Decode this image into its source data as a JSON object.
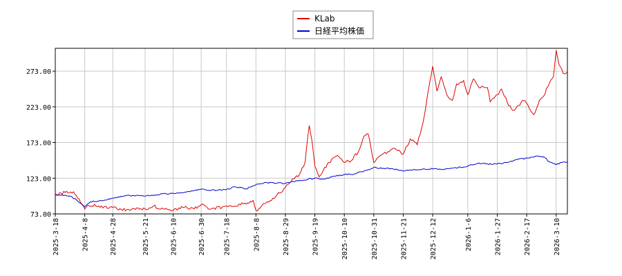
{
  "chart_data": {
    "type": "line",
    "title": "",
    "xlabel": "",
    "ylabel": "",
    "ylim": [
      73.0,
      305.0
    ],
    "y_ticks": [
      73.0,
      123.0,
      173.0,
      223.0,
      273.0
    ],
    "y_tick_labels": [
      "73.00",
      "123.00",
      "173.00",
      "223.00",
      "273.00"
    ],
    "x_range": [
      "2025-03-18",
      "2026-03-18"
    ],
    "x_ticks": [
      "2025-3-18",
      "2025-4-8",
      "2025-4-28",
      "2025-5-21",
      "2025-6-10",
      "2025-6-30",
      "2025-7-18",
      "2025-8-8",
      "2025-8-29",
      "2025-9-19",
      "2025-10-10",
      "2025-10-31",
      "2025-11-21",
      "2025-12-12",
      "2026-1-6",
      "2026-1-27",
      "2026-2-17",
      "2026-3-10"
    ],
    "x_tick_dates": [
      "2025-03-18",
      "2025-04-08",
      "2025-04-28",
      "2025-05-21",
      "2025-06-10",
      "2025-06-30",
      "2025-07-18",
      "2025-08-08",
      "2025-08-29",
      "2025-09-19",
      "2025-10-10",
      "2025-10-31",
      "2025-11-21",
      "2025-12-12",
      "2026-01-06",
      "2026-01-27",
      "2026-02-17",
      "2026-03-10"
    ],
    "grid": true,
    "legend_position": "top-center",
    "series": [
      {
        "name": "KLab",
        "color": "#dd0000",
        "points": [
          [
            "2025-03-18",
            100
          ],
          [
            "2025-03-25",
            103
          ],
          [
            "2025-03-31",
            104
          ],
          [
            "2025-04-04",
            94
          ],
          [
            "2025-04-08",
            80
          ],
          [
            "2025-04-10",
            85
          ],
          [
            "2025-04-18",
            84
          ],
          [
            "2025-04-28",
            82
          ],
          [
            "2025-05-08",
            79
          ],
          [
            "2025-05-21",
            80
          ],
          [
            "2025-05-27",
            84
          ],
          [
            "2025-06-03",
            80
          ],
          [
            "2025-06-10",
            78
          ],
          [
            "2025-06-17",
            82
          ],
          [
            "2025-06-25",
            80
          ],
          [
            "2025-06-30",
            86
          ],
          [
            "2025-07-07",
            80
          ],
          [
            "2025-07-18",
            84
          ],
          [
            "2025-07-28",
            86
          ],
          [
            "2025-08-06",
            92
          ],
          [
            "2025-08-08",
            78
          ],
          [
            "2025-08-15",
            88
          ],
          [
            "2025-08-22",
            97
          ],
          [
            "2025-08-29",
            110
          ],
          [
            "2025-09-03",
            122
          ],
          [
            "2025-09-08",
            128
          ],
          [
            "2025-09-12",
            145
          ],
          [
            "2025-09-15",
            197
          ],
          [
            "2025-09-17",
            175
          ],
          [
            "2025-09-19",
            140
          ],
          [
            "2025-09-22",
            125
          ],
          [
            "2025-09-29",
            145
          ],
          [
            "2025-10-05",
            155
          ],
          [
            "2025-10-10",
            145
          ],
          [
            "2025-10-15",
            148
          ],
          [
            "2025-10-20",
            160
          ],
          [
            "2025-10-24",
            182
          ],
          [
            "2025-10-27",
            185
          ],
          [
            "2025-10-31",
            145
          ],
          [
            "2025-11-05",
            155
          ],
          [
            "2025-11-10",
            160
          ],
          [
            "2025-11-14",
            165
          ],
          [
            "2025-11-21",
            157
          ],
          [
            "2025-11-26",
            178
          ],
          [
            "2025-12-01",
            170
          ],
          [
            "2025-12-06",
            210
          ],
          [
            "2025-12-10",
            258
          ],
          [
            "2025-12-12",
            280
          ],
          [
            "2025-12-15",
            245
          ],
          [
            "2025-12-18",
            265
          ],
          [
            "2025-12-22",
            240
          ],
          [
            "2025-12-26",
            232
          ],
          [
            "2025-12-29",
            255
          ],
          [
            "2026-01-03",
            260
          ],
          [
            "2026-01-06",
            240
          ],
          [
            "2026-01-10",
            262
          ],
          [
            "2026-01-14",
            250
          ],
          [
            "2026-01-20",
            250
          ],
          [
            "2026-01-22",
            230
          ],
          [
            "2026-01-27",
            240
          ],
          [
            "2026-01-30",
            248
          ],
          [
            "2026-02-04",
            225
          ],
          [
            "2026-02-07",
            218
          ],
          [
            "2026-02-11",
            225
          ],
          [
            "2026-02-14",
            232
          ],
          [
            "2026-02-17",
            228
          ],
          [
            "2026-02-22",
            212
          ],
          [
            "2026-02-26",
            232
          ],
          [
            "2026-03-01",
            238
          ],
          [
            "2026-03-05",
            255
          ],
          [
            "2026-03-08",
            265
          ],
          [
            "2026-03-10",
            302
          ],
          [
            "2026-03-12",
            282
          ],
          [
            "2026-03-15",
            270
          ],
          [
            "2026-03-18",
            272
          ]
        ]
      },
      {
        "name": "日経平均株価",
        "color": "#0000cc",
        "points": [
          [
            "2025-03-18",
            100
          ],
          [
            "2025-03-28",
            98
          ],
          [
            "2025-04-02",
            93
          ],
          [
            "2025-04-08",
            83
          ],
          [
            "2025-04-12",
            90
          ],
          [
            "2025-04-18",
            91
          ],
          [
            "2025-04-28",
            95
          ],
          [
            "2025-05-08",
            99
          ],
          [
            "2025-05-21",
            98
          ],
          [
            "2025-06-03",
            101
          ],
          [
            "2025-06-10",
            102
          ],
          [
            "2025-06-20",
            104
          ],
          [
            "2025-06-30",
            108
          ],
          [
            "2025-07-07",
            106
          ],
          [
            "2025-07-18",
            107
          ],
          [
            "2025-07-24",
            111
          ],
          [
            "2025-08-01",
            108
          ],
          [
            "2025-08-08",
            114
          ],
          [
            "2025-08-15",
            117
          ],
          [
            "2025-08-22",
            116
          ],
          [
            "2025-08-29",
            116
          ],
          [
            "2025-09-08",
            120
          ],
          [
            "2025-09-19",
            123
          ],
          [
            "2025-09-26",
            122
          ],
          [
            "2025-10-03",
            126
          ],
          [
            "2025-10-10",
            128
          ],
          [
            "2025-10-17",
            129
          ],
          [
            "2025-10-24",
            133
          ],
          [
            "2025-10-31",
            138
          ],
          [
            "2025-11-07",
            137
          ],
          [
            "2025-11-14",
            136
          ],
          [
            "2025-11-21",
            133
          ],
          [
            "2025-11-28",
            135
          ],
          [
            "2025-12-05",
            136
          ],
          [
            "2025-12-12",
            136
          ],
          [
            "2025-12-19",
            135
          ],
          [
            "2025-12-26",
            137
          ],
          [
            "2026-01-06",
            140
          ],
          [
            "2026-01-13",
            144
          ],
          [
            "2026-01-20",
            143
          ],
          [
            "2026-01-27",
            143
          ],
          [
            "2026-02-03",
            145
          ],
          [
            "2026-02-10",
            149
          ],
          [
            "2026-02-17",
            151
          ],
          [
            "2026-02-24",
            154
          ],
          [
            "2026-03-01",
            153
          ],
          [
            "2026-03-05",
            146
          ],
          [
            "2026-03-10",
            142
          ],
          [
            "2026-03-14",
            145
          ],
          [
            "2026-03-18",
            146
          ]
        ]
      }
    ]
  }
}
